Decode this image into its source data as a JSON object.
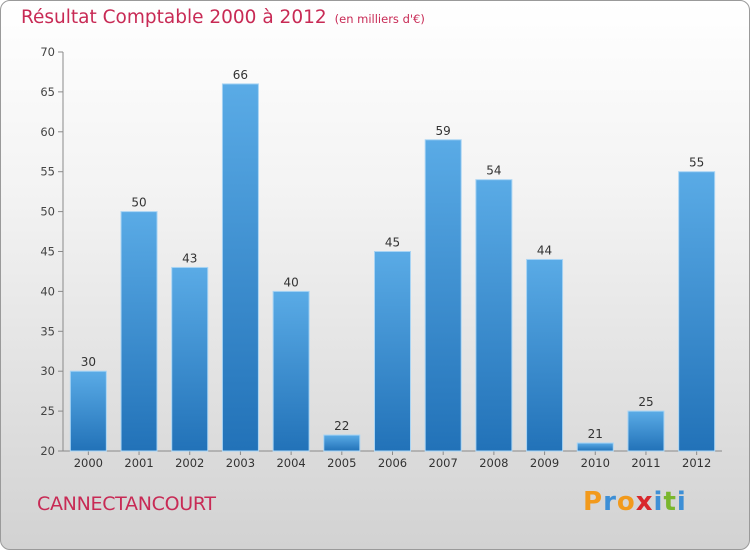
{
  "chart_data": {
    "type": "bar",
    "title": "Résultat Comptable 2000 à 2012",
    "unit_label": "(en milliers d'€)",
    "categories": [
      "2000",
      "2001",
      "2002",
      "2003",
      "2004",
      "2005",
      "2006",
      "2007",
      "2008",
      "2009",
      "2010",
      "2011",
      "2012"
    ],
    "values": [
      30,
      50,
      43,
      66,
      40,
      22,
      45,
      59,
      54,
      44,
      21,
      25,
      55
    ],
    "ylim": [
      20,
      70
    ],
    "yticks": [
      20,
      25,
      30,
      35,
      40,
      45,
      50,
      55,
      60,
      65,
      70
    ],
    "xlabel": "",
    "ylabel": "",
    "grid": false
  },
  "footer": {
    "commune": "CANNECTANCOURT",
    "logo_letters": [
      "P",
      "r",
      "o",
      "x",
      "i",
      "t",
      "i"
    ]
  },
  "colors": {
    "accent": "#c82a55",
    "bar_top": "#5aabe6",
    "bar_bottom": "#2272b8"
  }
}
